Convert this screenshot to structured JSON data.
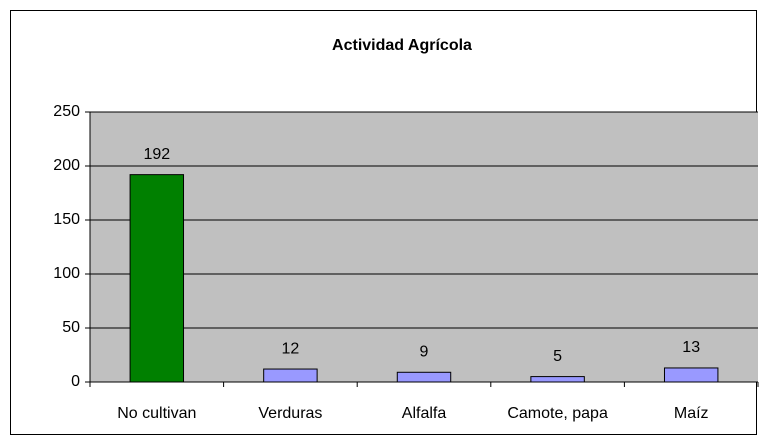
{
  "chart_data": {
    "type": "bar",
    "title": "Actividad Agrícola",
    "categories": [
      "No cultivan",
      "Verduras",
      "Alfalfa",
      "Camote, papa",
      "Maíz"
    ],
    "values": [
      192,
      12,
      9,
      5,
      13
    ],
    "colors": [
      "#008000",
      "#9999ff",
      "#9999ff",
      "#9999ff",
      "#9999ff"
    ],
    "ylim": [
      0,
      250
    ],
    "yticks": [
      0,
      50,
      100,
      150,
      200,
      250
    ],
    "grid": true,
    "plot_background": "#c0c0c0"
  }
}
